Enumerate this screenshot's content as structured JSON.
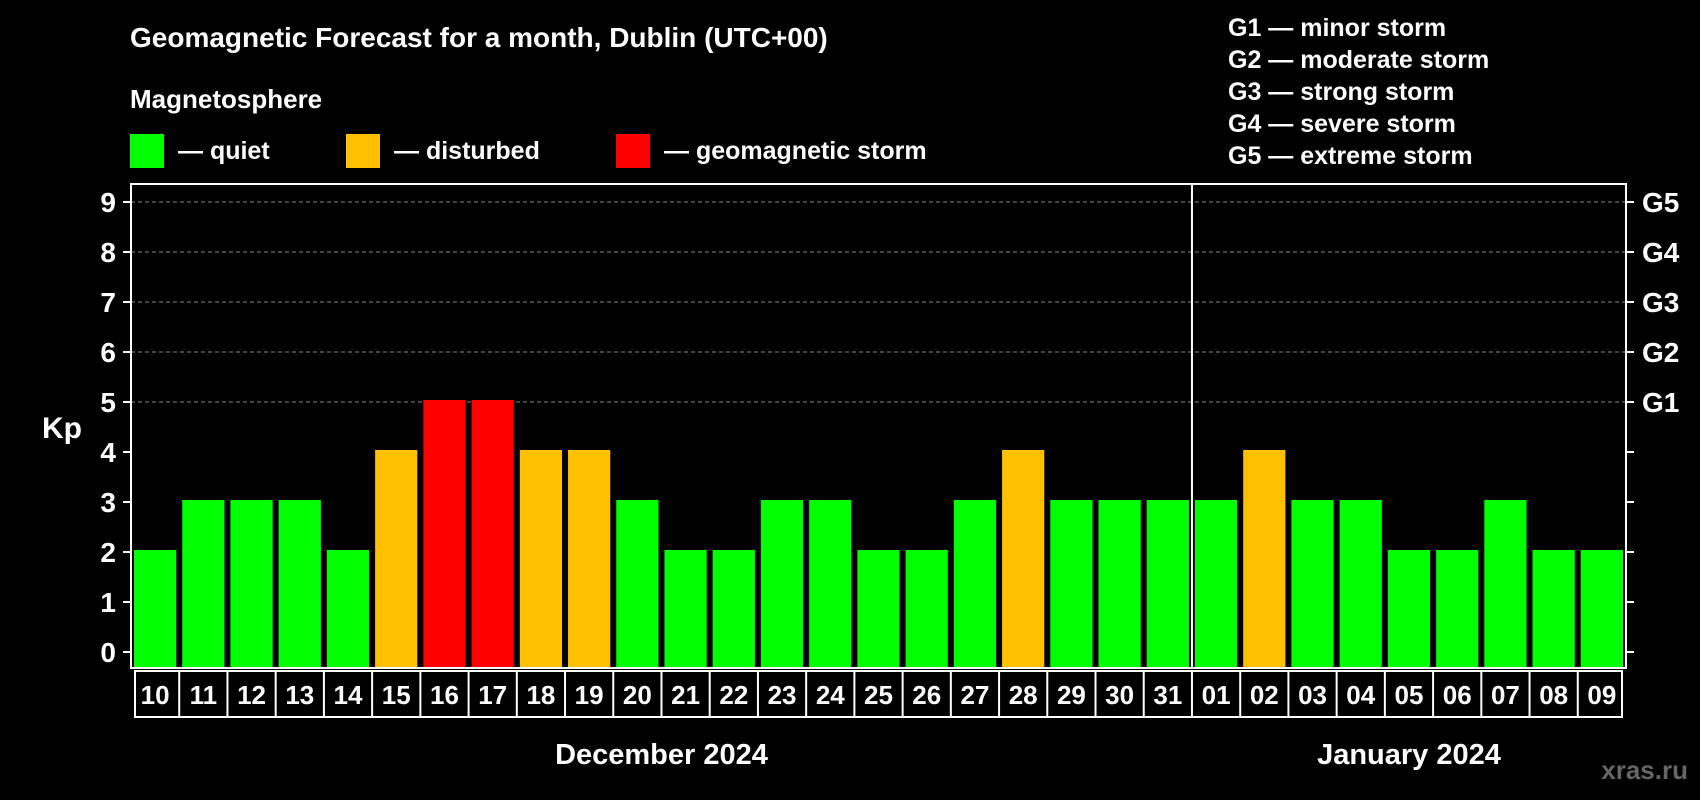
{
  "title": "Geomagnetic Forecast for a month, Dublin (UTC+00)",
  "subtitle": "Magnetosphere",
  "legend": [
    {
      "label": "— quiet",
      "color": "#00ff00"
    },
    {
      "label": "— disturbed",
      "color": "#ffc000"
    },
    {
      "label": "— geomagnetic storm",
      "color": "#ff0000"
    }
  ],
  "storm_scale": [
    "G1 — minor storm",
    "G2 — moderate storm",
    "G3 — strong storm",
    "G4 — severe storm",
    "G5 — extreme storm"
  ],
  "watermark": "xras.ru",
  "colors": {
    "quiet": "#00ff00",
    "disturbed": "#ffc000",
    "storm": "#ff0000",
    "axis": "#ffffff",
    "grid": "#888888"
  },
  "chart_data": {
    "type": "bar",
    "ylabel": "Kp",
    "ylim": [
      0,
      9
    ],
    "yticks": [
      0,
      1,
      2,
      3,
      4,
      5,
      6,
      7,
      8,
      9
    ],
    "right_ticks": [
      {
        "y": 5,
        "label": "G1"
      },
      {
        "y": 6,
        "label": "G2"
      },
      {
        "y": 7,
        "label": "G3"
      },
      {
        "y": 8,
        "label": "G4"
      },
      {
        "y": 9,
        "label": "G5"
      }
    ],
    "grid_lines": [
      5,
      6,
      7,
      8,
      9
    ],
    "categories": [
      "10",
      "11",
      "12",
      "13",
      "14",
      "15",
      "16",
      "17",
      "18",
      "19",
      "20",
      "21",
      "22",
      "23",
      "24",
      "25",
      "26",
      "27",
      "28",
      "29",
      "30",
      "31",
      "01",
      "02",
      "03",
      "04",
      "05",
      "06",
      "07",
      "08",
      "09"
    ],
    "values": [
      2,
      3,
      3,
      3,
      2,
      4,
      5,
      5,
      4,
      4,
      3,
      2,
      2,
      3,
      3,
      2,
      2,
      3,
      4,
      3,
      3,
      3,
      3,
      4,
      3,
      3,
      2,
      2,
      3,
      2,
      2
    ],
    "status": [
      "quiet",
      "quiet",
      "quiet",
      "quiet",
      "quiet",
      "disturbed",
      "storm",
      "storm",
      "disturbed",
      "disturbed",
      "quiet",
      "quiet",
      "quiet",
      "quiet",
      "quiet",
      "quiet",
      "quiet",
      "quiet",
      "disturbed",
      "quiet",
      "quiet",
      "quiet",
      "quiet",
      "disturbed",
      "quiet",
      "quiet",
      "quiet",
      "quiet",
      "quiet",
      "quiet",
      "quiet"
    ],
    "months": [
      {
        "label": "December 2024",
        "start": 0,
        "end": 21
      },
      {
        "label": "January 2024",
        "start": 22,
        "end": 30
      }
    ],
    "month_divider_after_index": 21
  }
}
